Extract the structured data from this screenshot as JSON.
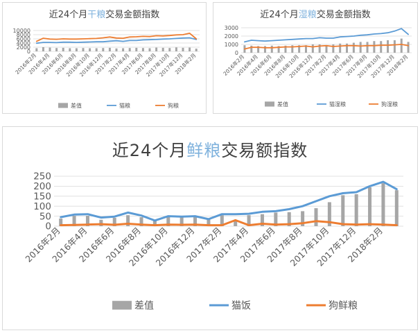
{
  "charts": [
    {
      "title_pre": "近24个月",
      "title_hl": "干粮",
      "title_post": "交易金额指数"
    },
    {
      "title_pre": "近24个月",
      "title_hl": "湿粮",
      "title_post": "交易金额指数"
    },
    {
      "title_pre": "近24个月",
      "title_hl": "鲜粮",
      "title_post": "交易额指数"
    }
  ],
  "colors": {
    "diff": "#a6a6a6",
    "cat": "#5b9bd5",
    "dog": "#ed7d31",
    "grid": "#d9d9d9",
    "title_highlight": "#7fb2dd"
  },
  "chart_data": [
    {
      "type": "bar+line",
      "x_tick_labels": [
        "2016年2月",
        "2016年4月",
        "2016年6月",
        "2016年8月",
        "2016年10月",
        "2016年12月",
        "2017年2月",
        "2017年4月",
        "2017年6月",
        "2017年8月",
        "2017年10月",
        "2017年12月",
        "2018年2月"
      ],
      "yticks": [
        "0",
        "2000",
        "4000",
        "6000",
        "8000",
        "10000"
      ],
      "ylim": [
        0,
        10000
      ],
      "legend_position": "bottom",
      "series": [
        {
          "name": "差值",
          "kind": "bar",
          "values": [
            1500,
            2000,
            1800,
            1600,
            1700,
            1500,
            1500,
            1600,
            1500,
            1500,
            1600,
            1700,
            1400,
            1500,
            1600,
            1700,
            1600,
            1500,
            1800,
            1700,
            1600,
            1900,
            1700,
            1800,
            1300
          ]
        },
        {
          "name": "猫粮",
          "kind": "line",
          "values": [
            3900,
            4300,
            4300,
            4200,
            4400,
            4400,
            4300,
            4400,
            4500,
            4600,
            4600,
            4900,
            5100,
            4800,
            5200,
            5200,
            5500,
            5600,
            5700,
            5900,
            6000,
            6200,
            6400,
            6500,
            5700
          ]
        },
        {
          "name": "狗粮",
          "kind": "line",
          "values": [
            4800,
            6300,
            5900,
            5800,
            6000,
            5900,
            5900,
            6000,
            6100,
            6200,
            6500,
            6900,
            6400,
            6300,
            6900,
            7000,
            7200,
            7100,
            7500,
            7400,
            7600,
            7900,
            8000,
            8700,
            6000
          ]
        }
      ]
    },
    {
      "type": "bar+line",
      "x_tick_labels": [
        "2016年2月",
        "2016年4月",
        "2016年6月",
        "2016年8月",
        "2016年10月",
        "2016年12月",
        "2017年2月",
        "2017年4月",
        "2017年6月",
        "2017年8月",
        "2017年10月",
        "2017年12月",
        "2018年2月"
      ],
      "yticks": [
        "0",
        "1000",
        "2000",
        "3000"
      ],
      "ylim": [
        0,
        3000
      ],
      "legend_position": "bottom",
      "series": [
        {
          "name": "差值",
          "kind": "bar",
          "values": [
            900,
            850,
            800,
            800,
            850,
            800,
            850,
            900,
            900,
            900,
            1000,
            1000,
            900,
            1000,
            1100,
            1100,
            1200,
            1300,
            1300,
            1400,
            1400,
            1500,
            1500,
            1700,
            1300
          ]
        },
        {
          "name": "猫湿粮",
          "kind": "line",
          "values": [
            1300,
            1500,
            1450,
            1400,
            1450,
            1500,
            1550,
            1600,
            1650,
            1700,
            1700,
            1800,
            1750,
            1750,
            1900,
            1950,
            2000,
            2100,
            2150,
            2250,
            2300,
            2400,
            2600,
            2900,
            2200
          ]
        },
        {
          "name": "狗湿粮",
          "kind": "line",
          "values": [
            450,
            650,
            650,
            600,
            600,
            650,
            700,
            700,
            750,
            800,
            700,
            800,
            850,
            750,
            800,
            850,
            850,
            800,
            850,
            850,
            900,
            900,
            950,
            1000,
            850
          ]
        }
      ]
    },
    {
      "type": "bar+line",
      "x_tick_labels": [
        "2016年2月",
        "2016年4月",
        "2016年6月",
        "2016年8月",
        "2016年10月",
        "2016年12月",
        "2017年2月",
        "2017年4月",
        "2017年6月",
        "2017年8月",
        "2017年10月",
        "2017年12月",
        "2018年2月"
      ],
      "yticks": [
        "0",
        "50",
        "100",
        "150",
        "200",
        "250"
      ],
      "ylim": [
        0,
        250
      ],
      "legend_position": "bottom",
      "series": [
        {
          "name": "差值",
          "kind": "bar",
          "values": [
            38,
            52,
            52,
            32,
            42,
            55,
            45,
            28,
            48,
            45,
            45,
            33,
            55,
            25,
            55,
            60,
            68,
            70,
            75,
            90,
            120,
            155,
            160,
            195,
            215,
            180
          ]
        },
        {
          "name": "猫饭",
          "kind": "line",
          "values": [
            45,
            58,
            60,
            43,
            48,
            68,
            53,
            28,
            50,
            48,
            50,
            35,
            60,
            60,
            62,
            72,
            75,
            85,
            100,
            125,
            150,
            165,
            170,
            200,
            222,
            185
          ]
        },
        {
          "name": "狗鲜粮",
          "kind": "line",
          "values": [
            5,
            6,
            8,
            10,
            7,
            12,
            8,
            5,
            8,
            7,
            8,
            5,
            5,
            30,
            5,
            12,
            8,
            10,
            15,
            25,
            20,
            10,
            8,
            10,
            8,
            5
          ]
        }
      ]
    }
  ]
}
